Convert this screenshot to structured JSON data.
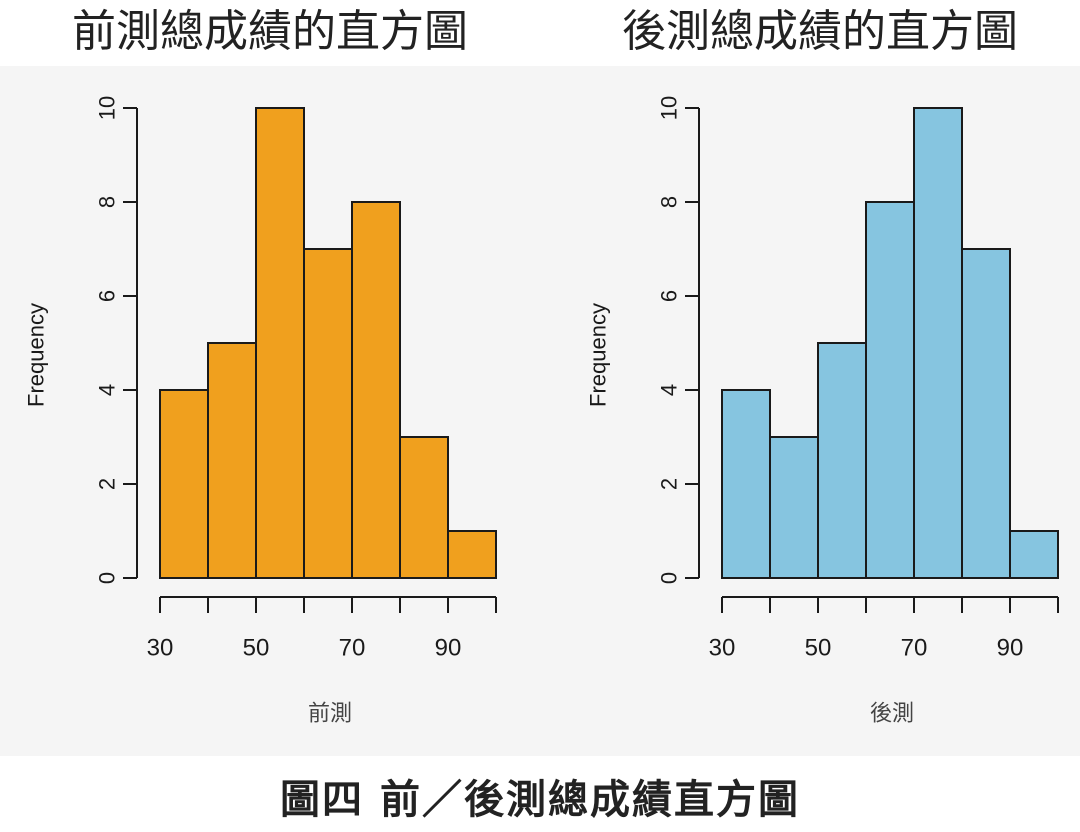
{
  "figure_caption": "圖四 前／後測總成績直方圖",
  "chart_data": [
    {
      "type": "bar",
      "title": "前測總成績的直方圖",
      "xlabel": "前測",
      "ylabel": "Frequency",
      "bins": [
        [
          30,
          40
        ],
        [
          40,
          50
        ],
        [
          50,
          60
        ],
        [
          60,
          70
        ],
        [
          70,
          80
        ],
        [
          80,
          90
        ],
        [
          90,
          100
        ]
      ],
      "values": [
        4,
        5,
        10,
        7,
        8,
        3,
        1
      ],
      "x_ticks": [
        30,
        40,
        50,
        60,
        70,
        80,
        90,
        100
      ],
      "x_tick_labels": [
        "30",
        "",
        "50",
        "",
        "70",
        "",
        "90",
        ""
      ],
      "y_ticks": [
        0,
        2,
        4,
        6,
        8,
        10
      ],
      "y_tick_labels": [
        "0",
        "2",
        "4",
        "6",
        "8",
        "10"
      ],
      "xlim": [
        30,
        100
      ],
      "ylim": [
        0,
        10
      ],
      "grid": false,
      "bar_color": "#f0a01e"
    },
    {
      "type": "bar",
      "title": "後測總成績的直方圖",
      "xlabel": "後測",
      "ylabel": "Frequency",
      "bins": [
        [
          30,
          40
        ],
        [
          40,
          50
        ],
        [
          50,
          60
        ],
        [
          60,
          70
        ],
        [
          70,
          80
        ],
        [
          80,
          90
        ],
        [
          90,
          100
        ]
      ],
      "values": [
        4,
        3,
        5,
        8,
        10,
        7,
        1
      ],
      "x_ticks": [
        30,
        40,
        50,
        60,
        70,
        80,
        90,
        100
      ],
      "x_tick_labels": [
        "30",
        "",
        "50",
        "",
        "70",
        "",
        "90",
        ""
      ],
      "y_ticks": [
        0,
        2,
        4,
        6,
        8,
        10
      ],
      "y_tick_labels": [
        "0",
        "2",
        "4",
        "6",
        "8",
        "10"
      ],
      "xlim": [
        30,
        100
      ],
      "ylim": [
        0,
        10
      ],
      "grid": false,
      "bar_color": "#86c5e0"
    }
  ]
}
